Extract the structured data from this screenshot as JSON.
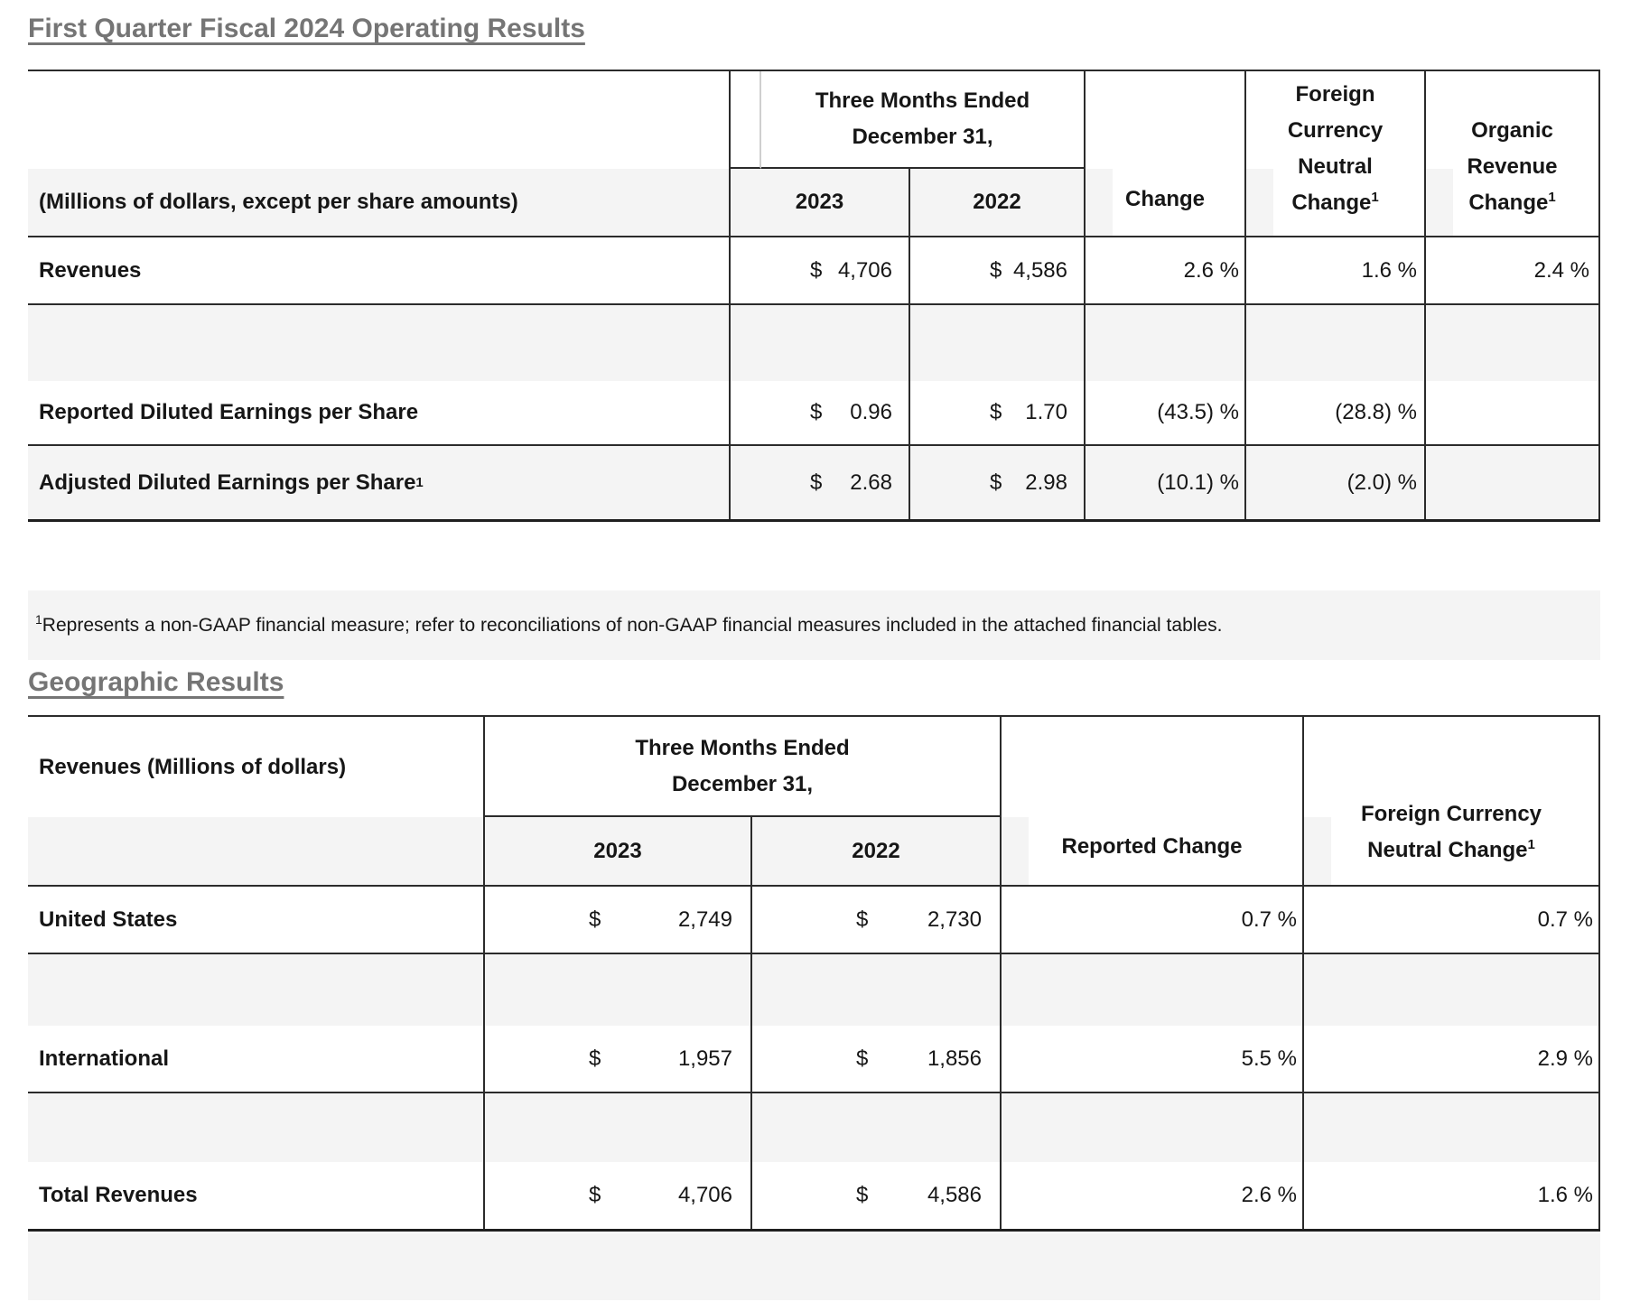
{
  "page": {
    "title": "First Quarter Fiscal 2024 Operating Results",
    "geographic_heading": "Geographic Results",
    "footnote": {
      "marker": "1",
      "text": "Represents a non-GAAP financial measure; refer to reconciliations of non-GAAP financial measures included in the attached financial tables."
    }
  },
  "colors": {
    "heading_gray": "#757575",
    "row_shade": "#f4f4f4",
    "border_dark": "#2b2b2b",
    "text": "#161616"
  },
  "operating_results_table": {
    "period_header_line1": "Three Months Ended",
    "period_header_line2": "December 31,",
    "units_label": "(Millions of dollars, except per share amounts)",
    "year_columns": [
      "2023",
      "2022"
    ],
    "change_header": "Change",
    "fcn_header": {
      "line1": "Foreign",
      "line2": "Currency",
      "line3": "Neutral",
      "line4": "Change",
      "sup": "1"
    },
    "organic_header": {
      "line1": "Organic",
      "line2": "Revenue",
      "line3": "Change",
      "sup": "1"
    },
    "currency_symbol": "$",
    "rows": [
      {
        "label": "Revenues",
        "label_sup": "",
        "y2023": "4,706",
        "y2022": "4,586",
        "change": "2.6 %",
        "fcn_change": "1.6 %",
        "organic_change": "2.4 %"
      },
      {
        "label": "Reported Diluted Earnings per Share",
        "label_sup": "",
        "y2023": "0.96",
        "y2022": "1.70",
        "change": "(43.5) %",
        "fcn_change": "(28.8) %",
        "organic_change": ""
      },
      {
        "label": "Adjusted Diluted Earnings per Share",
        "label_sup": "1",
        "y2023": "2.68",
        "y2022": "2.98",
        "change": "(10.1) %",
        "fcn_change": "(2.0) %",
        "organic_change": ""
      }
    ]
  },
  "geographic_table": {
    "caption": "Revenues (Millions of dollars)",
    "period_header_line1": "Three Months Ended",
    "period_header_line2": "December 31,",
    "year_columns": [
      "2023",
      "2022"
    ],
    "reported_change_header": "Reported Change",
    "fcn_header": {
      "line1": "Foreign Currency",
      "line2": "Neutral Change",
      "sup": "1"
    },
    "currency_symbol": "$",
    "rows": [
      {
        "label": "United States",
        "y2023": "2,749",
        "y2022": "2,730",
        "reported_change": "0.7 %",
        "fcn_change": "0.7 %"
      },
      {
        "label": "International",
        "y2023": "1,957",
        "y2022": "1,856",
        "reported_change": "5.5 %",
        "fcn_change": "2.9 %"
      },
      {
        "label": "Total Revenues",
        "y2023": "4,706",
        "y2022": "4,586",
        "reported_change": "2.6 %",
        "fcn_change": "1.6 %"
      }
    ]
  }
}
